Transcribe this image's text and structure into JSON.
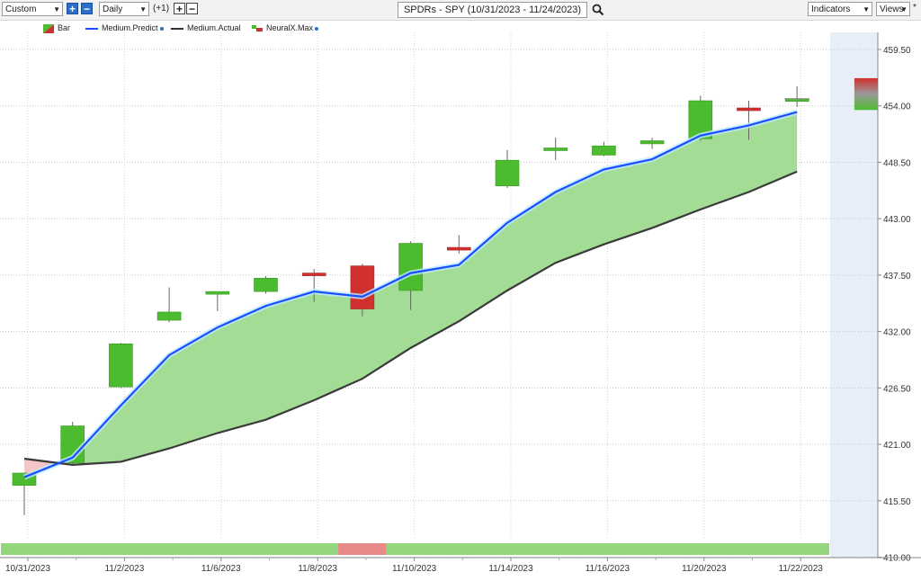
{
  "toolbar": {
    "period_select": "Custom",
    "interval_select": "Daily",
    "interval_offset": "(+1)",
    "chart_title": "SPDRs - SPY (10/31/2023 - 11/24/2023)",
    "indicators_label": "Indicators",
    "views_label": "Views",
    "views_marker": "*"
  },
  "legend": [
    {
      "label": "Bar",
      "icon": "bar-icon"
    },
    {
      "label": "Medium.Predict",
      "color": "#1a4fff"
    },
    {
      "label": "Medium.Actual",
      "color": "#333333"
    },
    {
      "label": "NeuralX.Max",
      "icon": "neuralx-icon"
    }
  ],
  "colors": {
    "up": "#4cbb2f",
    "down": "#d03030",
    "band": "#a3dd95",
    "predict": "#1a4fff",
    "actual": "#3a3a3a",
    "future_zone": "#e6eef8"
  },
  "chart_data": {
    "type": "candlestick",
    "dates": [
      "10/31/2023",
      "11/1/2023",
      "11/2/2023",
      "11/3/2023",
      "11/6/2023",
      "11/7/2023",
      "11/8/2023",
      "11/9/2023",
      "11/10/2023",
      "11/13/2023",
      "11/14/2023",
      "11/15/2023",
      "11/16/2023",
      "11/17/2023",
      "11/20/2023",
      "11/21/2023",
      "11/22/2023"
    ],
    "x_tick_labels": [
      "10/31/2023",
      "11/2/2023",
      "11/6/2023",
      "11/8/2023",
      "11/10/2023",
      "11/14/2023",
      "11/16/2023",
      "11/20/2023",
      "11/22/2023"
    ],
    "ohlc": [
      {
        "open": 417.0,
        "high": 418.2,
        "low": 414.1,
        "close": 418.2
      },
      {
        "open": 419.2,
        "high": 423.2,
        "low": 419.0,
        "close": 422.8
      },
      {
        "open": 426.6,
        "high": 430.9,
        "low": 426.5,
        "close": 430.8
      },
      {
        "open": 433.1,
        "high": 436.3,
        "low": 432.9,
        "close": 433.9
      },
      {
        "open": 435.8,
        "high": 435.9,
        "low": 434.0,
        "close": 435.9
      },
      {
        "open": 435.9,
        "high": 437.4,
        "low": 435.7,
        "close": 437.2
      },
      {
        "open": 437.7,
        "high": 438.1,
        "low": 434.9,
        "close": 437.5
      },
      {
        "open": 438.4,
        "high": 438.6,
        "low": 433.5,
        "close": 434.2
      },
      {
        "open": 436.0,
        "high": 440.8,
        "low": 434.1,
        "close": 440.6
      },
      {
        "open": 440.2,
        "high": 441.4,
        "low": 439.6,
        "close": 440.0
      },
      {
        "open": 446.2,
        "high": 449.7,
        "low": 446.0,
        "close": 448.7
      },
      {
        "open": 449.7,
        "high": 450.9,
        "low": 448.7,
        "close": 449.9
      },
      {
        "open": 449.2,
        "high": 450.5,
        "low": 449.1,
        "close": 450.1
      },
      {
        "open": 450.3,
        "high": 450.9,
        "low": 449.8,
        "close": 450.6
      },
      {
        "open": 450.8,
        "high": 455.0,
        "low": 450.6,
        "close": 454.5
      },
      {
        "open": 453.8,
        "high": 454.5,
        "low": 450.7,
        "close": 453.6
      },
      {
        "open": 454.6,
        "high": 455.9,
        "low": 453.9,
        "close": 454.7
      }
    ],
    "series": [
      {
        "name": "Medium.Predict",
        "values": [
          417.8,
          419.7,
          424.8,
          429.7,
          432.4,
          434.5,
          435.9,
          435.4,
          437.7,
          438.5,
          442.6,
          445.6,
          447.8,
          448.8,
          451.1,
          452.1,
          453.4
        ]
      },
      {
        "name": "Medium.Actual",
        "values": [
          419.6,
          419.0,
          419.3,
          420.6,
          422.1,
          423.4,
          425.3,
          427.4,
          430.4,
          433.0,
          436.0,
          438.7,
          440.5,
          442.1,
          443.9,
          445.6,
          447.6
        ]
      }
    ],
    "neuralx_max": {
      "high": 456.3,
      "low": 455.2,
      "high_color": "#d03030",
      "low_color": "#4cbb2f"
    },
    "neuralx_signals": [
      "up",
      "up",
      "up",
      "up",
      "up",
      "up",
      "up",
      "down",
      "up",
      "up",
      "up",
      "up",
      "up",
      "up",
      "up",
      "up",
      "up"
    ],
    "y_ticks": [
      "410.00",
      "415.50",
      "421.00",
      "426.50",
      "432.00",
      "437.50",
      "443.00",
      "448.50",
      "454.00",
      "459.50"
    ],
    "ylim": [
      410,
      461
    ]
  }
}
